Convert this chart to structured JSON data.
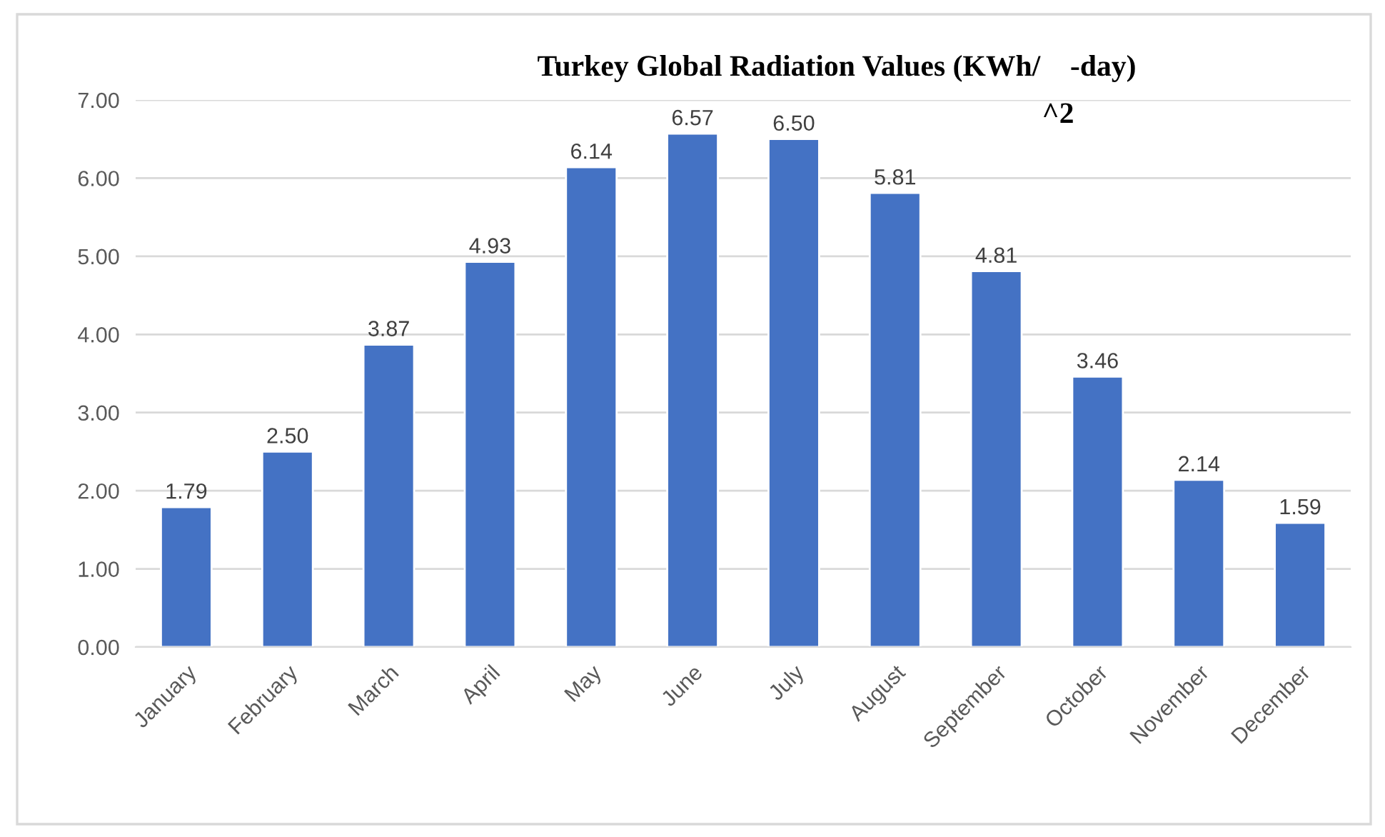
{
  "chart_data": {
    "type": "bar",
    "title": "Turkey Global Radiation Values (KWh/    -day)",
    "annotations": [
      "^2"
    ],
    "categories": [
      "January",
      "February",
      "March",
      "April",
      "May",
      "June",
      "July",
      "August",
      "September",
      "October",
      "November",
      "December"
    ],
    "values": [
      1.79,
      2.5,
      3.87,
      4.93,
      6.14,
      6.57,
      6.5,
      5.81,
      4.81,
      3.46,
      2.14,
      1.59
    ],
    "value_labels": [
      "1.79",
      "2.50",
      "3.87",
      "4.93",
      "6.14",
      "6.57",
      "6.50",
      "5.81",
      "4.81",
      "3.46",
      "2.14",
      "1.59"
    ],
    "color": "#4472c4",
    "ylim": [
      0,
      7
    ],
    "yticks": [
      {
        "value": 0,
        "label": "0.00"
      },
      {
        "value": 1,
        "label": "1.00"
      },
      {
        "value": 2,
        "label": "2.00"
      },
      {
        "value": 3,
        "label": "3.00"
      },
      {
        "value": 4,
        "label": "4.00"
      },
      {
        "value": 5,
        "label": "5.00"
      },
      {
        "value": 6,
        "label": "6.00"
      },
      {
        "value": 7,
        "label": "7.00"
      }
    ],
    "grid": "y"
  }
}
